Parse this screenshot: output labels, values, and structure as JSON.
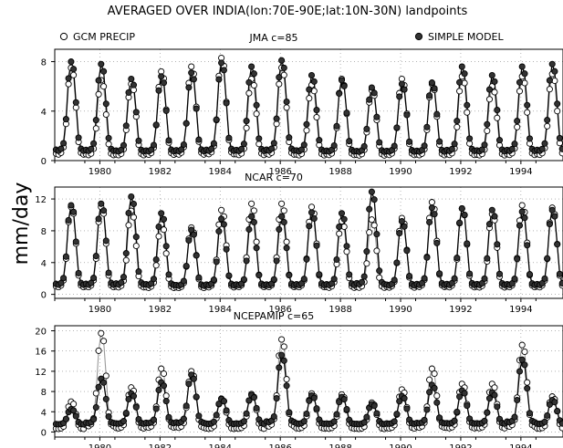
{
  "figure": {
    "title": "AVERAGED OVER INDIA(lon:70E-90E;lat:10N-30N) landpoints",
    "ylabel": "mm/day",
    "legend": {
      "gcm": "GCM PRECIP",
      "simple": "SIMPLE MODEL",
      "gcm_color": "#ffffff",
      "simple_color": "#333333"
    }
  },
  "chart_data": [
    {
      "type": "line",
      "title": "JMA c=85",
      "xlim": [
        1979.0,
        1995.9
      ],
      "ylim": [
        0,
        9
      ],
      "yticks": [
        "0",
        "4",
        "8"
      ],
      "ytick_values": [
        0,
        4,
        8
      ],
      "xticks": [
        "1980",
        "1982",
        "1984",
        "1986",
        "1988",
        "1990",
        "1992",
        "1994"
      ],
      "grid": true,
      "series": [
        {
          "name": "GCM PRECIP",
          "peaks": [
            7.5,
            6.5,
            6.2,
            7.2,
            7.6,
            8.3,
            6.6,
            7.5,
            6.1,
            6.6,
            5.7,
            6.6,
            6.2,
            6.8,
            6.0,
            6.8,
            7.0
          ],
          "floor": 0.2
        },
        {
          "name": "SIMPLE MODEL",
          "peaks": [
            8.0,
            7.8,
            6.6,
            6.8,
            7.1,
            7.9,
            7.6,
            8.1,
            6.9,
            6.5,
            5.9,
            6.2,
            6.3,
            7.6,
            6.9,
            7.6,
            7.8
          ],
          "floor": 0.5
        }
      ]
    },
    {
      "type": "line",
      "title": "NCAR c=70",
      "xlim": [
        1979.0,
        1995.9
      ],
      "ylim": [
        -0.5,
        13.5
      ],
      "yticks": [
        "0",
        "4",
        "8",
        "12"
      ],
      "ytick_values": [
        0,
        4,
        8,
        12
      ],
      "xticks": [
        "1980",
        "1982",
        "1984",
        "1986",
        "1988",
        "1990",
        "1992",
        "1994"
      ],
      "grid": true,
      "series": [
        {
          "name": "GCM PRECIP",
          "peaks": [
            11.0,
            11.0,
            10.5,
            8.8,
            8.4,
            10.6,
            11.4,
            11.4,
            11.0,
            9.2,
            9.4,
            9.6,
            11.6,
            10.8,
            10.1,
            11.2,
            10.9
          ],
          "floor": 0.5
        },
        {
          "name": "SIMPLE MODEL",
          "peaks": [
            11.2,
            11.4,
            12.3,
            10.2,
            8.1,
            9.5,
            9.8,
            9.8,
            10.3,
            10.2,
            12.9,
            9.2,
            10.9,
            10.8,
            10.6,
            10.4,
            10.6
          ],
          "floor": 0.8
        }
      ]
    },
    {
      "type": "line",
      "title": "NCEPAMIP c=65",
      "xlim": [
        1979.0,
        1995.9
      ],
      "ylim": [
        -1,
        21
      ],
      "yticks": [
        "0",
        "4",
        "8",
        "12",
        "16",
        "20"
      ],
      "ytick_values": [
        0,
        4,
        8,
        12,
        16,
        20
      ],
      "xticks": [
        "1980",
        "1982",
        "1984",
        "1986",
        "1988",
        "1990",
        "1992",
        "1994"
      ],
      "grid": true,
      "series": [
        {
          "name": "GCM PRECIP",
          "peaks": [
            6.0,
            19.5,
            8.8,
            12.5,
            12.0,
            6.6,
            7.5,
            18.3,
            7.6,
            7.4,
            5.8,
            8.4,
            12.5,
            9.5,
            9.5,
            17.2,
            7.0
          ],
          "floor": 0.4
        },
        {
          "name": "SIMPLE MODEL",
          "peaks": [
            4.5,
            10.5,
            7.6,
            9.8,
            11.3,
            6.5,
            7.3,
            15.2,
            7.2,
            6.9,
            5.5,
            7.1,
            9.3,
            8.2,
            7.8,
            14.3,
            6.3
          ],
          "floor": 1.4
        }
      ]
    }
  ]
}
